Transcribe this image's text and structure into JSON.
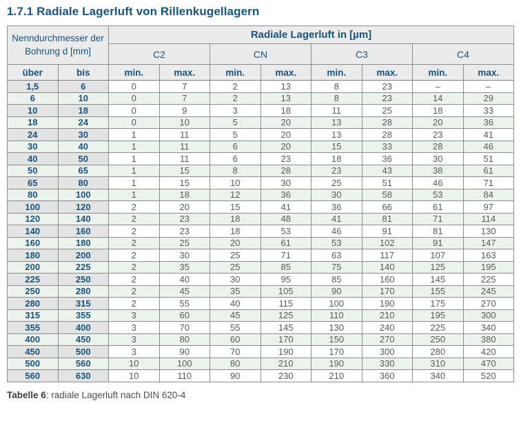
{
  "page": {
    "title": "1.7.1 Radiale Lagerluft von Rillenkugellagern"
  },
  "colors": {
    "accent_blue": "#17537F",
    "header_bg": "#ebebeb",
    "dim_column_bg": "#e3e3e3",
    "alt_row_bg": "#ecf3ec",
    "grid_line": "#8c8c8c",
    "value_text": "#595959"
  },
  "table": {
    "header": {
      "left_title": "Nenndurchmesser der Bohrung d [mm]",
      "right_title": "Radiale Lagerluft in [µm]",
      "classes": [
        "C2",
        "CN",
        "C3",
        "C4"
      ],
      "over_label": "über",
      "to_label": "bis",
      "min_label": "min.",
      "max_label": "max."
    },
    "rows": [
      {
        "ueber": "1,5",
        "bis": "6",
        "values": [
          "0",
          "7",
          "2",
          "13",
          "8",
          "23",
          "–",
          "–"
        ]
      },
      {
        "ueber": "6",
        "bis": "10",
        "values": [
          "0",
          "7",
          "2",
          "13",
          "8",
          "23",
          "14",
          "29"
        ]
      },
      {
        "ueber": "10",
        "bis": "18",
        "values": [
          "0",
          "9",
          "3",
          "18",
          "11",
          "25",
          "18",
          "33"
        ]
      },
      {
        "ueber": "18",
        "bis": "24",
        "values": [
          "0",
          "10",
          "5",
          "20",
          "13",
          "28",
          "20",
          "36"
        ]
      },
      {
        "ueber": "24",
        "bis": "30",
        "values": [
          "1",
          "11",
          "5",
          "20",
          "13",
          "28",
          "23",
          "41"
        ]
      },
      {
        "ueber": "30",
        "bis": "40",
        "values": [
          "1",
          "11",
          "6",
          "20",
          "15",
          "33",
          "28",
          "46"
        ]
      },
      {
        "ueber": "40",
        "bis": "50",
        "values": [
          "1",
          "11",
          "6",
          "23",
          "18",
          "36",
          "30",
          "51"
        ]
      },
      {
        "ueber": "50",
        "bis": "65",
        "values": [
          "1",
          "15",
          "8",
          "28",
          "23",
          "43",
          "38",
          "61"
        ]
      },
      {
        "ueber": "65",
        "bis": "80",
        "values": [
          "1",
          "15",
          "10",
          "30",
          "25",
          "51",
          "46",
          "71"
        ]
      },
      {
        "ueber": "80",
        "bis": "100",
        "values": [
          "1",
          "18",
          "12",
          "36",
          "30",
          "58",
          "53",
          "84"
        ]
      },
      {
        "ueber": "100",
        "bis": "120",
        "values": [
          "2",
          "20",
          "15",
          "41",
          "36",
          "66",
          "61",
          "97"
        ]
      },
      {
        "ueber": "120",
        "bis": "140",
        "values": [
          "2",
          "23",
          "18",
          "48",
          "41",
          "81",
          "71",
          "114"
        ]
      },
      {
        "ueber": "140",
        "bis": "160",
        "values": [
          "2",
          "23",
          "18",
          "53",
          "46",
          "91",
          "81",
          "130"
        ]
      },
      {
        "ueber": "160",
        "bis": "180",
        "values": [
          "2",
          "25",
          "20",
          "61",
          "53",
          "102",
          "91",
          "147"
        ]
      },
      {
        "ueber": "180",
        "bis": "200",
        "values": [
          "2",
          "30",
          "25",
          "71",
          "63",
          "117",
          "107",
          "163"
        ]
      },
      {
        "ueber": "200",
        "bis": "225",
        "values": [
          "2",
          "35",
          "25",
          "85",
          "75",
          "140",
          "125",
          "195"
        ]
      },
      {
        "ueber": "225",
        "bis": "250",
        "values": [
          "2",
          "40",
          "30",
          "95",
          "85",
          "160",
          "145",
          "225"
        ]
      },
      {
        "ueber": "250",
        "bis": "280",
        "values": [
          "2",
          "45",
          "35",
          "105",
          "90",
          "170",
          "155",
          "245"
        ]
      },
      {
        "ueber": "280",
        "bis": "315",
        "values": [
          "2",
          "55",
          "40",
          "115",
          "100",
          "190",
          "175",
          "270"
        ]
      },
      {
        "ueber": "315",
        "bis": "355",
        "values": [
          "3",
          "60",
          "45",
          "125",
          "110",
          "210",
          "195",
          "300"
        ]
      },
      {
        "ueber": "355",
        "bis": "400",
        "values": [
          "3",
          "70",
          "55",
          "145",
          "130",
          "240",
          "225",
          "340"
        ]
      },
      {
        "ueber": "400",
        "bis": "450",
        "values": [
          "3",
          "80",
          "60",
          "170",
          "150",
          "270",
          "250",
          "380"
        ]
      },
      {
        "ueber": "450",
        "bis": "500",
        "values": [
          "3",
          "90",
          "70",
          "190",
          "170",
          "300",
          "280",
          "420"
        ]
      },
      {
        "ueber": "500",
        "bis": "560",
        "values": [
          "10",
          "100",
          "80",
          "210",
          "190",
          "330",
          "310",
          "470"
        ]
      },
      {
        "ueber": "560",
        "bis": "630",
        "values": [
          "10",
          "110",
          "90",
          "230",
          "210",
          "360",
          "340",
          "520"
        ]
      }
    ]
  },
  "caption": {
    "label": "Tabelle 6",
    "rest": ": radiale Lagerluft nach DIN 620-4"
  }
}
